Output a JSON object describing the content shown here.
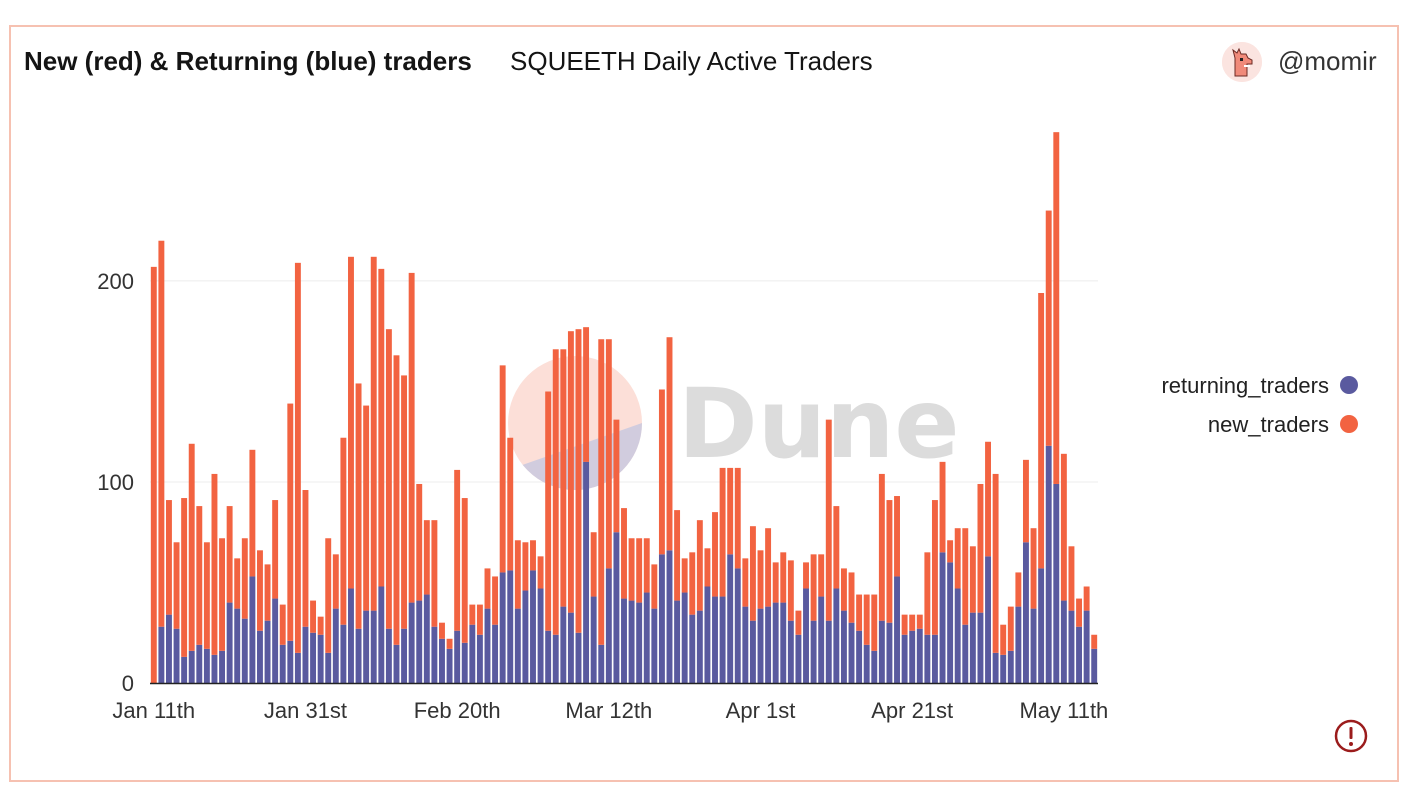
{
  "header": {
    "title": "New (red) & Returning (blue) traders",
    "subtitle": "SQUEETH Daily Active Traders",
    "author": "@momir"
  },
  "watermark": {
    "text": "Dune"
  },
  "colors": {
    "returning": "#5a5a9f",
    "new": "#f26341",
    "grid": "#ececec",
    "axis": "#222222"
  },
  "chart_data": {
    "type": "bar",
    "stacked": true,
    "title": "SQUEETH Daily Active Traders",
    "xlabel": "",
    "ylabel": "",
    "ylim": [
      0,
      290
    ],
    "yticks": [
      0,
      100,
      200
    ],
    "xticks": [
      {
        "label": "Jan 11th",
        "index": 0
      },
      {
        "label": "Jan 31st",
        "index": 20
      },
      {
        "label": "Feb 20th",
        "index": 40
      },
      {
        "label": "Mar 12th",
        "index": 60
      },
      {
        "label": "Apr 1st",
        "index": 80
      },
      {
        "label": "Apr 21st",
        "index": 100
      },
      {
        "label": "May 11th",
        "index": 120
      }
    ],
    "legend_position": "right",
    "series": [
      {
        "name": "returning_traders",
        "color": "#5a5a9f",
        "values": [
          0,
          28,
          34,
          27,
          13,
          16,
          19,
          17,
          14,
          16,
          40,
          37,
          32,
          53,
          26,
          31,
          42,
          19,
          21,
          15,
          28,
          25,
          24,
          15,
          37,
          29,
          47,
          27,
          36,
          36,
          48,
          27,
          19,
          27,
          40,
          41,
          44,
          28,
          22,
          17,
          26,
          20,
          29,
          24,
          37,
          29,
          55,
          56,
          37,
          46,
          56,
          47,
          26,
          24,
          38,
          35,
          25,
          110,
          43,
          19,
          57,
          75,
          42,
          41,
          40,
          45,
          37,
          64,
          66,
          41,
          45,
          34,
          36,
          48,
          43,
          43,
          64,
          57,
          38,
          31,
          37,
          38,
          40,
          40,
          31,
          24,
          47,
          31,
          43,
          31,
          47,
          36,
          30,
          26,
          19,
          16,
          31,
          30,
          53,
          24,
          26,
          27,
          24,
          24,
          65,
          60,
          47,
          29,
          35,
          35,
          63,
          15,
          14,
          16,
          38,
          70,
          37,
          57,
          118,
          99,
          41,
          36,
          28,
          36,
          17
        ]
      },
      {
        "name": "new_traders",
        "color": "#f26341",
        "values": [
          207,
          192,
          57,
          43,
          79,
          103,
          69,
          53,
          90,
          56,
          48,
          25,
          40,
          63,
          40,
          28,
          49,
          20,
          118,
          194,
          68,
          16,
          9,
          57,
          27,
          93,
          165,
          122,
          102,
          176,
          158,
          149,
          144,
          126,
          164,
          58,
          37,
          53,
          8,
          5,
          80,
          72,
          10,
          15,
          20,
          24,
          103,
          66,
          34,
          24,
          15,
          16,
          119,
          142,
          128,
          140,
          151,
          67,
          32,
          152,
          114,
          56,
          45,
          31,
          32,
          27,
          22,
          82,
          106,
          45,
          17,
          31,
          45,
          19,
          42,
          64,
          43,
          50,
          24,
          47,
          29,
          39,
          20,
          25,
          30,
          12,
          13,
          33,
          21,
          100,
          41,
          21,
          25,
          18,
          25,
          28,
          73,
          61,
          40,
          10,
          8,
          7,
          41,
          67,
          45,
          11,
          30,
          48,
          33,
          64,
          57,
          89,
          15,
          22,
          17,
          41,
          40,
          137,
          117,
          175,
          73,
          32,
          14,
          12,
          7
        ]
      }
    ]
  }
}
